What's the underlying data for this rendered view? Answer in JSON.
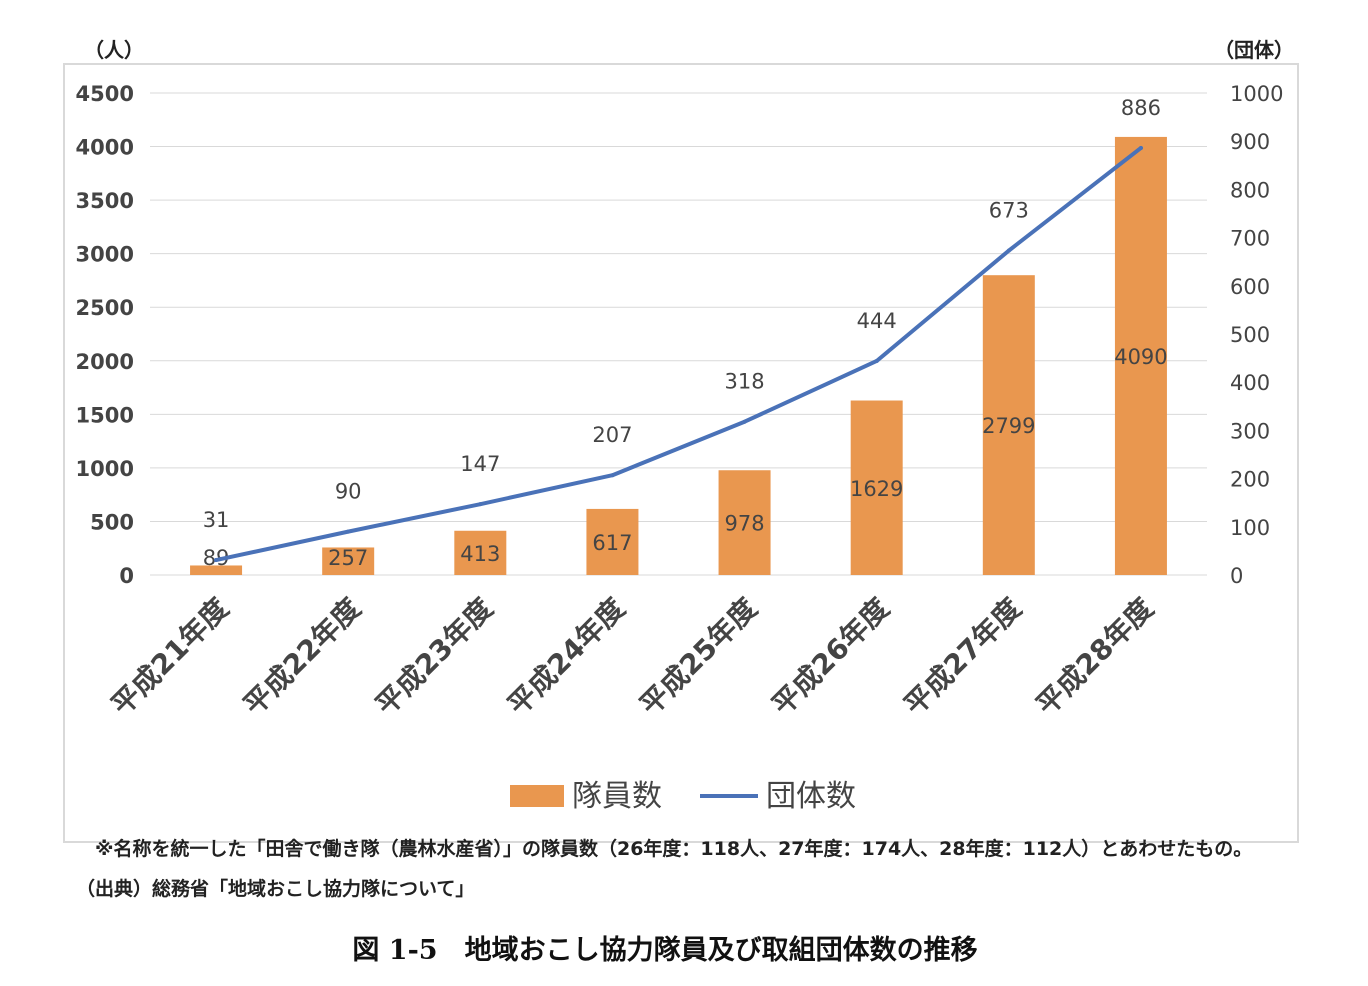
{
  "chart_data": {
    "type": "bar+line",
    "categories": [
      "平成21年度",
      "平成22年度",
      "平成23年度",
      "平成24年度",
      "平成25年度",
      "平成26年度",
      "平成27年度",
      "平成28年度"
    ],
    "series": [
      {
        "name": "隊員数",
        "type": "bar",
        "axis": "left",
        "values": [
          89,
          257,
          413,
          617,
          978,
          1629,
          2799,
          4090
        ],
        "color": "#E9974F"
      },
      {
        "name": "団体数",
        "type": "line",
        "axis": "right",
        "values": [
          31,
          90,
          147,
          207,
          318,
          444,
          673,
          886
        ],
        "color": "#4A72B8"
      }
    ],
    "y_left": {
      "unit": "（人）",
      "ylim": [
        0,
        4500
      ],
      "ticks": [
        "0",
        "500",
        "1000",
        "1500",
        "2000",
        "2500",
        "3000",
        "3500",
        "4000",
        "4500"
      ]
    },
    "y_right": {
      "unit": "（団体）",
      "ylim": [
        0,
        1000
      ],
      "ticks": [
        "0",
        "100",
        "200",
        "300",
        "400",
        "500",
        "600",
        "700",
        "800",
        "900",
        "1000"
      ]
    },
    "grid": true,
    "legend_position": "bottom"
  },
  "note": "※名称を統一した「田舎で働き隊（農林水産省）」の隊員数（26年度：118人、27年度：174人、28年度：112人）とあわせたもの。",
  "source": "（出典）総務省「地域おこし協力隊について」",
  "figure_title": "図 1-5　地域おこし協力隊員及び取組団体数の推移"
}
